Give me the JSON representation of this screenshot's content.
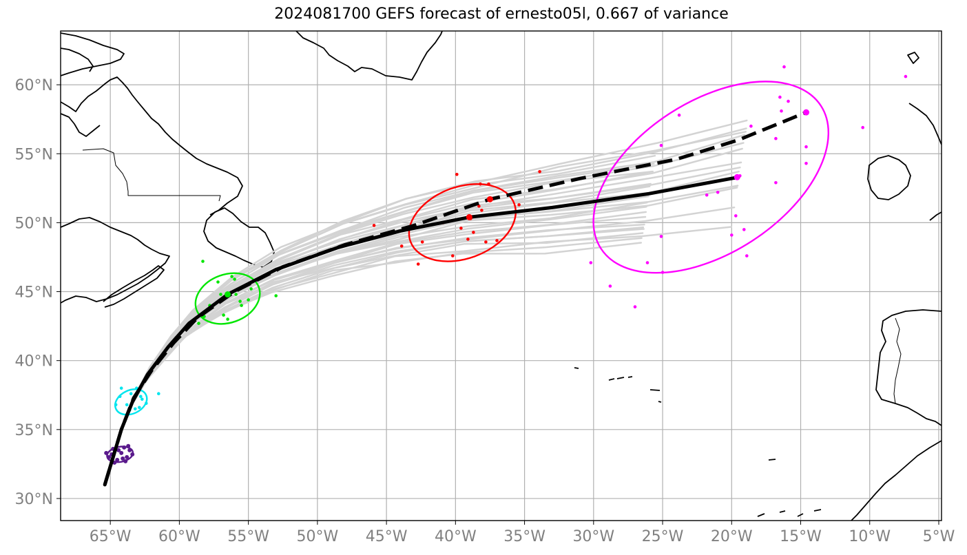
{
  "title": "2024081700 GEFS forecast of ernesto05l, 0.667 of variance",
  "chart_data": {
    "type": "map",
    "lon_ticks": [
      {
        "value": -65,
        "label": "65°W"
      },
      {
        "value": -60,
        "label": "60°W"
      },
      {
        "value": -55,
        "label": "55°W"
      },
      {
        "value": -50,
        "label": "50°W"
      },
      {
        "value": -45,
        "label": "45°W"
      },
      {
        "value": -40,
        "label": "40°W"
      },
      {
        "value": -35,
        "label": "35°W"
      },
      {
        "value": -30,
        "label": "30°W"
      },
      {
        "value": -25,
        "label": "25°W"
      },
      {
        "value": -20,
        "label": "20°W"
      },
      {
        "value": -15,
        "label": "15°W"
      },
      {
        "value": -10,
        "label": "10°W"
      },
      {
        "value": -5,
        "label": "5°W"
      }
    ],
    "lat_ticks": [
      {
        "value": 60,
        "label": "60°N"
      },
      {
        "value": 55,
        "label": "55°N"
      },
      {
        "value": 50,
        "label": "50°N"
      },
      {
        "value": 45,
        "label": "45°N"
      },
      {
        "value": 40,
        "label": "40°N"
      },
      {
        "value": 35,
        "label": "35°N"
      },
      {
        "value": 30,
        "label": "30°N"
      }
    ],
    "lon_range": [
      -68.6,
      -4.8
    ],
    "lat_range": [
      28.4,
      63.9
    ],
    "grid": true,
    "colors": {
      "ensemble": "#d3d3d3",
      "mean_track": "#000000",
      "coast": "#000000",
      "grid": "#b0b0b0",
      "tick_label": "#808080"
    },
    "mean_track_solid": [
      [
        -65.4,
        31.0
      ],
      [
        -64.8,
        33.0
      ],
      [
        -64.2,
        35.0
      ],
      [
        -63.4,
        37.0
      ],
      [
        -62.3,
        39.0
      ],
      [
        -60.8,
        41.0
      ],
      [
        -59.3,
        42.7
      ],
      [
        -56.5,
        44.8
      ],
      [
        -53.0,
        46.6
      ],
      [
        -48.5,
        48.2
      ],
      [
        -44.0,
        49.4
      ],
      [
        -39.0,
        50.4
      ],
      [
        -33.0,
        51.1
      ],
      [
        -26.0,
        52.1
      ],
      [
        -19.5,
        53.3
      ]
    ],
    "mean_track_dashed": [
      [
        -65.4,
        31.0
      ],
      [
        -64.8,
        33.0
      ],
      [
        -64.2,
        35.0
      ],
      [
        -63.3,
        37.3
      ],
      [
        -62.0,
        39.3
      ],
      [
        -60.4,
        41.3
      ],
      [
        -58.7,
        43.1
      ],
      [
        -56.0,
        45.0
      ],
      [
        -52.5,
        46.8
      ],
      [
        -48.0,
        48.4
      ],
      [
        -43.0,
        49.8
      ],
      [
        -37.5,
        51.7
      ],
      [
        -31.0,
        53.2
      ],
      [
        -24.0,
        54.6
      ],
      [
        -19.5,
        56.0
      ],
      [
        -14.6,
        58.0
      ]
    ],
    "time_groups": [
      {
        "color": "#5a1a8c",
        "ellipse": {
          "center": [
            -64.3,
            33.2
          ],
          "rx": 0.95,
          "ry": 0.55,
          "angle": -10
        },
        "points": [
          [
            -64.8,
            33.6
          ],
          [
            -64.2,
            33.3
          ],
          [
            -63.8,
            33.0
          ],
          [
            -64.5,
            32.8
          ],
          [
            -63.6,
            33.5
          ],
          [
            -65.1,
            33.0
          ],
          [
            -64.0,
            33.7
          ],
          [
            -63.4,
            33.2
          ],
          [
            -64.7,
            32.6
          ],
          [
            -65.3,
            33.3
          ],
          [
            -64.1,
            32.9
          ],
          [
            -63.7,
            33.8
          ],
          [
            -64.9,
            33.2
          ],
          [
            -64.4,
            33.5
          ],
          [
            -63.9,
            32.7
          ]
        ]
      },
      {
        "color": "#00e5ee",
        "ellipse": {
          "center": [
            -63.5,
            37.0
          ],
          "rx": 1.2,
          "ry": 0.85,
          "angle": -25
        },
        "points": [
          [
            -63.0,
            37.7
          ],
          [
            -63.8,
            36.8
          ],
          [
            -63.2,
            36.5
          ],
          [
            -62.7,
            37.2
          ],
          [
            -64.3,
            37.4
          ],
          [
            -63.5,
            37.6
          ],
          [
            -62.4,
            36.9
          ],
          [
            -64.6,
            36.8
          ],
          [
            -63.1,
            38.0
          ],
          [
            -62.9,
            36.6
          ],
          [
            -61.5,
            37.6
          ],
          [
            -64.2,
            38.0
          ],
          [
            -63.6,
            36.4
          ],
          [
            -62.8,
            37.4
          ]
        ]
      },
      {
        "color": "#00e600",
        "ellipse": {
          "center": [
            -56.5,
            44.5
          ],
          "rx": 2.4,
          "ry": 1.75,
          "angle": -20
        },
        "points": [
          [
            -56.0,
            45.9
          ],
          [
            -57.2,
            45.7
          ],
          [
            -55.6,
            44.3
          ],
          [
            -57.8,
            44.0
          ],
          [
            -56.5,
            43.0
          ],
          [
            -54.8,
            45.2
          ],
          [
            -58.2,
            43.2
          ],
          [
            -55.9,
            44.8
          ],
          [
            -57.0,
            44.8
          ],
          [
            -56.2,
            46.1
          ],
          [
            -58.6,
            42.7
          ],
          [
            -55.0,
            44.4
          ],
          [
            -53.0,
            44.7
          ],
          [
            -58.3,
            47.2
          ],
          [
            -60.0,
            41.7
          ],
          [
            -56.8,
            43.3
          ],
          [
            -55.5,
            44.0
          ]
        ]
      },
      {
        "color": "#ff0000",
        "ellipse": {
          "center": [
            -39.5,
            50.0
          ],
          "rx": 4.0,
          "ry": 2.6,
          "angle": -20
        },
        "points": [
          [
            -39.9,
            53.5
          ],
          [
            -38.2,
            52.8
          ],
          [
            -37.6,
            52.8
          ],
          [
            -38.3,
            51.2
          ],
          [
            -38.9,
            50.3
          ],
          [
            -38.1,
            50.9
          ],
          [
            -37.5,
            51.7
          ],
          [
            -40.9,
            50.0
          ],
          [
            -39.6,
            49.6
          ],
          [
            -38.7,
            49.3
          ],
          [
            -39.1,
            48.8
          ],
          [
            -40.2,
            47.6
          ],
          [
            -42.7,
            47.0
          ],
          [
            -43.9,
            48.3
          ],
          [
            -45.9,
            49.8
          ],
          [
            -42.4,
            48.6
          ],
          [
            -37.0,
            48.7
          ],
          [
            -35.4,
            51.3
          ],
          [
            -33.9,
            53.7
          ],
          [
            -37.8,
            48.6
          ]
        ]
      },
      {
        "color": "#ff00ff",
        "ellipse": {
          "center": [
            -21.5,
            53.3
          ],
          "rx": 9.5,
          "ry": 5.5,
          "angle": -33
        },
        "points": [
          [
            -14.6,
            58.0
          ],
          [
            -19.6,
            53.3
          ],
          [
            -16.2,
            61.3
          ],
          [
            -16.5,
            59.1
          ],
          [
            -15.9,
            58.8
          ],
          [
            -16.4,
            58.1
          ],
          [
            -23.8,
            57.8
          ],
          [
            -18.6,
            57.0
          ],
          [
            -17.3,
            56.9
          ],
          [
            -16.8,
            56.1
          ],
          [
            -14.6,
            55.5
          ],
          [
            -14.6,
            54.3
          ],
          [
            -10.5,
            56.9
          ],
          [
            -7.4,
            60.6
          ],
          [
            -25.1,
            55.6
          ],
          [
            -19.4,
            53.4
          ],
          [
            -16.8,
            52.9
          ],
          [
            -21.0,
            52.2
          ],
          [
            -21.8,
            52.0
          ],
          [
            -19.7,
            50.5
          ],
          [
            -19.1,
            49.5
          ],
          [
            -20.0,
            49.1
          ],
          [
            -25.1,
            49.0
          ],
          [
            -18.9,
            47.6
          ],
          [
            -26.1,
            47.1
          ],
          [
            -25.0,
            46.4
          ],
          [
            -30.2,
            47.1
          ],
          [
            -28.8,
            45.4
          ],
          [
            -27.0,
            43.9
          ]
        ]
      }
    ]
  }
}
